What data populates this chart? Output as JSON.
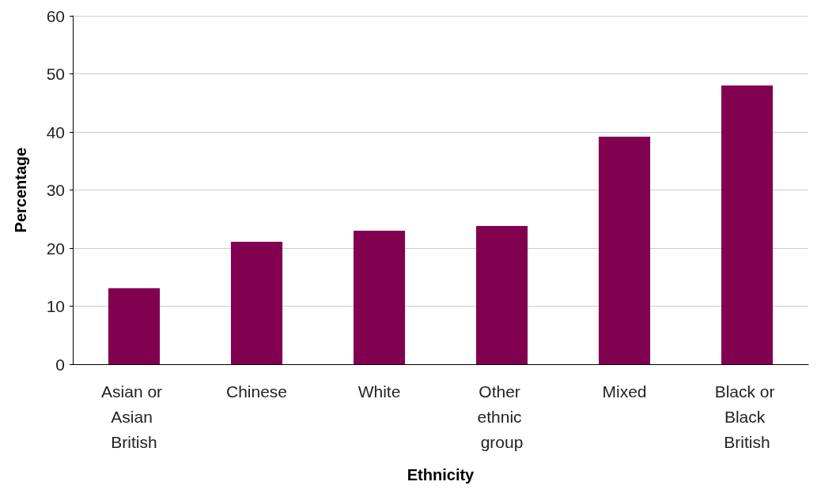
{
  "chart_data": {
    "type": "bar",
    "xlabel": "Ethnicity",
    "ylabel": "Percentage",
    "categories": [
      "Asian or Asian British",
      "Chinese",
      "White",
      "Other ethnic group",
      "Mixed",
      "Black or Black British"
    ],
    "values": [
      13.1,
      21.1,
      23.0,
      23.8,
      39.2,
      48.0
    ],
    "color": "#820050",
    "ylim": [
      0,
      60
    ],
    "yticks": [
      0,
      10,
      20,
      30,
      40,
      50,
      60
    ],
    "grid": "y"
  }
}
